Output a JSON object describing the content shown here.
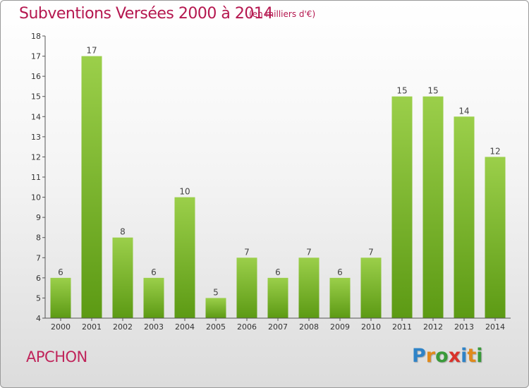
{
  "header": {
    "title": "Subventions Versées 2000 à 2014",
    "unit": "(en milliers d'€)"
  },
  "footer": {
    "commune": "APCHON",
    "logo": "Proxiti"
  },
  "colors": {
    "title": "#b5174f",
    "bar_light": "#9bcf4a",
    "bar_dark": "#5c9a14",
    "axis": "#555555"
  },
  "chart_data": {
    "type": "bar",
    "title": "Subventions Versées 2000 à 2014",
    "subtitle": "(en milliers d'€)",
    "categories": [
      "2000",
      "2001",
      "2002",
      "2003",
      "2004",
      "2005",
      "2006",
      "2007",
      "2008",
      "2009",
      "2010",
      "2011",
      "2012",
      "2013",
      "2014"
    ],
    "values": [
      6,
      17,
      8,
      6,
      10,
      5,
      7,
      6,
      7,
      6,
      7,
      15,
      15,
      14,
      12
    ],
    "yticks": [
      4,
      5,
      6,
      7,
      8,
      9,
      10,
      11,
      12,
      13,
      14,
      15,
      16,
      17,
      18
    ],
    "ylim": [
      4,
      18
    ],
    "grid": false,
    "legend": "none"
  }
}
